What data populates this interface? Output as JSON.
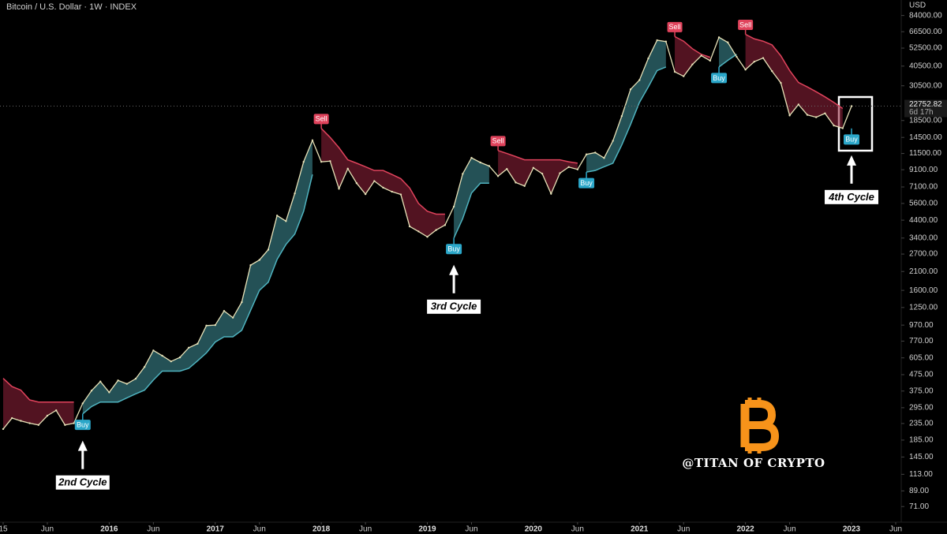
{
  "chart_data": {
    "type": "line",
    "title": "Bitcoin / U.S. Dollar · 1W · INDEX",
    "y_unit": "USD",
    "log_y": true,
    "x": [
      "2015-01",
      "2015-02",
      "2015-03",
      "2015-04",
      "2015-05",
      "2015-06",
      "2015-07",
      "2015-08",
      "2015-09",
      "2015-10",
      "2015-11",
      "2015-12",
      "2016-01",
      "2016-02",
      "2016-03",
      "2016-04",
      "2016-05",
      "2016-06",
      "2016-07",
      "2016-08",
      "2016-09",
      "2016-10",
      "2016-11",
      "2016-12",
      "2017-01",
      "2017-02",
      "2017-03",
      "2017-04",
      "2017-05",
      "2017-06",
      "2017-07",
      "2017-08",
      "2017-09",
      "2017-10",
      "2017-11",
      "2017-12",
      "2018-01",
      "2018-02",
      "2018-03",
      "2018-04",
      "2018-05",
      "2018-06",
      "2018-07",
      "2018-08",
      "2018-09",
      "2018-10",
      "2018-11",
      "2018-12",
      "2019-01",
      "2019-02",
      "2019-03",
      "2019-04",
      "2019-05",
      "2019-06",
      "2019-07",
      "2019-08",
      "2019-09",
      "2019-10",
      "2019-11",
      "2019-12",
      "2020-01",
      "2020-02",
      "2020-03",
      "2020-04",
      "2020-05",
      "2020-06",
      "2020-07",
      "2020-08",
      "2020-09",
      "2020-10",
      "2020-11",
      "2020-12",
      "2021-01",
      "2021-02",
      "2021-03",
      "2021-04",
      "2021-05",
      "2021-06",
      "2021-07",
      "2021-08",
      "2021-09",
      "2021-10",
      "2021-11",
      "2021-12",
      "2022-01",
      "2022-02",
      "2022-03",
      "2022-04",
      "2022-05",
      "2022-06",
      "2022-07",
      "2022-08",
      "2022-09",
      "2022-10",
      "2022-11",
      "2022-12",
      "2023-01"
    ],
    "series": [
      {
        "color": "#e8e2b8",
        "values": [
          217,
          254,
          244,
          236,
          230,
          263,
          284,
          230,
          236,
          314,
          377,
          430,
          368,
          437,
          416,
          448,
          531,
          673,
          624,
          575,
          609,
          700,
          742,
          963,
          970,
          1190,
          1080,
          1350,
          2300,
          2480,
          2875,
          4700,
          4340,
          6470,
          10200,
          13900,
          10200,
          10300,
          6930,
          9240,
          7500,
          6400,
          7730,
          7030,
          6630,
          6370,
          4020,
          3740,
          3460,
          3820,
          4100,
          5350,
          8570,
          10800,
          10100,
          9600,
          8300,
          9200,
          7570,
          7200,
          9350,
          8600,
          6440,
          8660,
          9460,
          9140,
          11350,
          11650,
          10780,
          13800,
          19700,
          29000,
          33100,
          45200,
          58800,
          57700,
          37300,
          35000,
          41500,
          47100,
          43800,
          61300,
          57000,
          46300,
          38500,
          43200,
          45500,
          37700,
          31800,
          19900,
          23300,
          20050,
          19400,
          20500,
          17200,
          16550,
          22752.82
        ]
      },
      {
        "color": "#4fb3bf",
        "values": [
          null,
          null,
          null,
          null,
          null,
          null,
          null,
          null,
          null,
          270,
          300,
          320,
          320,
          320,
          340,
          360,
          380,
          440,
          500,
          500,
          500,
          520,
          580,
          650,
          760,
          820,
          820,
          900,
          1200,
          1600,
          1800,
          2500,
          3100,
          3600,
          5000,
          8500,
          null,
          null,
          null,
          null,
          null,
          null,
          null,
          null,
          null,
          null,
          null,
          null,
          null,
          null,
          null,
          3400,
          4500,
          6500,
          7500,
          7500,
          null,
          null,
          null,
          null,
          null,
          null,
          null,
          null,
          null,
          null,
          8800,
          9000,
          9500,
          10000,
          13000,
          17500,
          24000,
          30000,
          38000,
          40000,
          null,
          null,
          null,
          null,
          null,
          40000,
          44000,
          48000,
          null,
          null,
          null,
          null,
          null,
          null,
          null,
          null,
          null,
          null,
          null,
          null,
          16500
        ]
      },
      {
        "color": "#e0435c",
        "values": [
          450,
          400,
          380,
          330,
          320,
          320,
          320,
          320,
          320,
          null,
          null,
          null,
          null,
          null,
          null,
          null,
          null,
          null,
          null,
          null,
          null,
          null,
          null,
          null,
          null,
          null,
          null,
          null,
          null,
          null,
          null,
          null,
          null,
          null,
          null,
          null,
          16500,
          14500,
          12500,
          10500,
          10000,
          9500,
          9000,
          9000,
          8500,
          8000,
          7000,
          5600,
          5000,
          4800,
          4800,
          null,
          null,
          null,
          null,
          null,
          12000,
          11500,
          11000,
          10500,
          10500,
          10500,
          10500,
          10500,
          10200,
          10000,
          null,
          null,
          null,
          null,
          null,
          null,
          null,
          null,
          null,
          null,
          62000,
          58000,
          52000,
          48000,
          46000,
          null,
          null,
          null,
          64000,
          60000,
          58000,
          55000,
          47000,
          38000,
          32000,
          30000,
          28000,
          26000,
          24000,
          22000,
          null
        ]
      }
    ],
    "xlim": [
      "2015-01",
      "2023-06"
    ],
    "xticks": [
      {
        "value": "2015-01",
        "label": "15"
      },
      {
        "value": "2015-06",
        "label": "Jun"
      },
      {
        "value": "2016-01",
        "label": "2016"
      },
      {
        "value": "2016-06",
        "label": "Jun"
      },
      {
        "value": "2017-01",
        "label": "2017"
      },
      {
        "value": "2017-06",
        "label": "Jun"
      },
      {
        "value": "2018-01",
        "label": "2018"
      },
      {
        "value": "2018-06",
        "label": "Jun"
      },
      {
        "value": "2019-01",
        "label": "2019"
      },
      {
        "value": "2019-06",
        "label": "Jun"
      },
      {
        "value": "2020-01",
        "label": "2020"
      },
      {
        "value": "2020-06",
        "label": "Jun"
      },
      {
        "value": "2021-01",
        "label": "2021"
      },
      {
        "value": "2021-06",
        "label": "Jun"
      },
      {
        "value": "2022-01",
        "label": "2022"
      },
      {
        "value": "2022-06",
        "label": "Jun"
      },
      {
        "value": "2023-01",
        "label": "2023"
      },
      {
        "value": "2023-06",
        "label": "Jun"
      }
    ],
    "ylim": [
      58,
      105000
    ],
    "yticks": [
      {
        "value": 84000,
        "label": "84000.00"
      },
      {
        "value": 66500,
        "label": "66500.00"
      },
      {
        "value": 52500,
        "label": "52500.00"
      },
      {
        "value": 40500,
        "label": "40500.00"
      },
      {
        "value": 30500,
        "label": "30500.00"
      },
      {
        "value": 18500,
        "label": "18500.00"
      },
      {
        "value": 14500,
        "label": "14500.00"
      },
      {
        "value": 11500,
        "label": "11500.00"
      },
      {
        "value": 9100,
        "label": "9100.00"
      },
      {
        "value": 7100,
        "label": "7100.00"
      },
      {
        "value": 5600,
        "label": "5600.00"
      },
      {
        "value": 4400,
        "label": "4400.00"
      },
      {
        "value": 3400,
        "label": "3400.00"
      },
      {
        "value": 2700,
        "label": "2700.00"
      },
      {
        "value": 2100,
        "label": "2100.00"
      },
      {
        "value": 1600,
        "label": "1600.00"
      },
      {
        "value": 1250,
        "label": "1250.00"
      },
      {
        "value": 970,
        "label": "970.00"
      },
      {
        "value": 770,
        "label": "770.00"
      },
      {
        "value": 605,
        "label": "605.00"
      },
      {
        "value": 475,
        "label": "475.00"
      },
      {
        "value": 375,
        "label": "375.00"
      },
      {
        "value": 295,
        "label": "295.00"
      },
      {
        "value": 235,
        "label": "235.00"
      },
      {
        "value": 185,
        "label": "185.00"
      },
      {
        "value": 145,
        "label": "145.00"
      },
      {
        "value": 113,
        "label": "113.00"
      },
      {
        "value": 89,
        "label": "89.00"
      },
      {
        "value": 71,
        "label": "71.00"
      }
    ],
    "last_price": {
      "value": 22752.82,
      "label": "22752.82",
      "countdown": "6d 17h"
    },
    "signals": [
      {
        "x": "2015-10",
        "label": "Buy"
      },
      {
        "x": "2018-01",
        "label": "Sell"
      },
      {
        "x": "2019-04",
        "label": "Buy"
      },
      {
        "x": "2019-09",
        "label": "Sell"
      },
      {
        "x": "2020-07",
        "label": "Buy"
      },
      {
        "x": "2021-05",
        "label": "Sell"
      },
      {
        "x": "2021-10",
        "label": "Buy"
      },
      {
        "x": "2022-01",
        "label": "Sell"
      },
      {
        "x": "2023-01",
        "label": "Buy"
      }
    ],
    "annotations": [
      {
        "x": "2015-10",
        "text": "2nd Cycle"
      },
      {
        "x": "2019-04",
        "text": "3rd Cycle"
      },
      {
        "x": "2023-01",
        "text": "4th Cycle"
      }
    ],
    "watermark": "@TITAN OF CRYPTO"
  }
}
